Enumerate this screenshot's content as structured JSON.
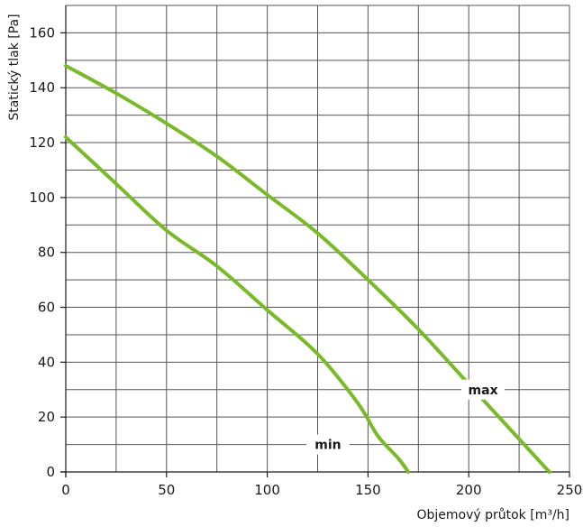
{
  "chart_data": {
    "type": "line",
    "xlabel": "Objemový průtok [m³/h]",
    "ylabel": "Statický tlak [Pa]",
    "xlim": [
      0,
      250
    ],
    "ylim": [
      0,
      170
    ],
    "x_ticks": [
      0,
      50,
      100,
      150,
      200,
      250
    ],
    "y_ticks": [
      0,
      20,
      40,
      60,
      80,
      100,
      120,
      140,
      160
    ],
    "grid": true,
    "line_color": "#7ab929",
    "series": [
      {
        "name": "max",
        "x": [
          0,
          25,
          50,
          75,
          100,
          125,
          150,
          175,
          200,
          225,
          240
        ],
        "y": [
          148,
          138,
          127,
          115,
          101,
          87,
          70,
          52,
          32,
          12,
          0
        ]
      },
      {
        "name": "min",
        "x": [
          0,
          25,
          50,
          75,
          100,
          125,
          145,
          155,
          165,
          170
        ],
        "y": [
          122,
          105,
          88,
          75,
          59,
          43,
          25,
          13,
          5,
          0
        ]
      }
    ]
  }
}
